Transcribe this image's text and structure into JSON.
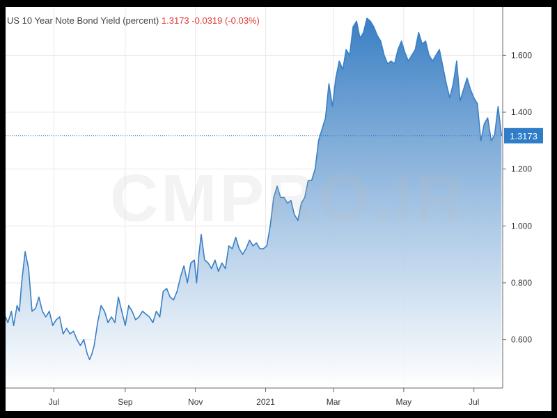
{
  "header": {
    "symbol_title": "US 10 Year Note Bond Yield (percent)",
    "last_value": "1.3173",
    "change": "-0.0319",
    "change_pct": "(-0.03%)"
  },
  "watermark": "CMPRO.IR",
  "colors": {
    "line": "#3a7fc4",
    "fill_top": "#3a7fc4",
    "fill_bottom": "#ffffff",
    "grid": "#e8e8e8",
    "badge": "#2f7dc9",
    "down": "#e53935"
  },
  "chart_data": {
    "type": "area",
    "title": "US 10 Year Note Bond Yield (percent)",
    "xlabel": "",
    "ylabel": "",
    "ylim": [
      0.43,
      1.77
    ],
    "y_ticks": [
      "0.600",
      "0.800",
      "1.000",
      "1.200",
      "1.400",
      "1.600"
    ],
    "x_ticks": [
      {
        "label": "Jul",
        "date": "2020-07-01"
      },
      {
        "label": "Sep",
        "date": "2020-09-01"
      },
      {
        "label": "Nov",
        "date": "2020-11-01"
      },
      {
        "label": "2021",
        "date": "2021-01-01"
      },
      {
        "label": "Mar",
        "date": "2021-03-01"
      },
      {
        "label": "May",
        "date": "2021-05-01"
      },
      {
        "label": "Jul",
        "date": "2021-07-01"
      }
    ],
    "x_range": [
      "2020-05-20",
      "2021-07-26"
    ],
    "current_value": 1.3173,
    "grid": true,
    "series": [
      {
        "values": [
          [
            "2020-05-20",
            0.68
          ],
          [
            "2020-05-22",
            0.66
          ],
          [
            "2020-05-25",
            0.7
          ],
          [
            "2020-05-27",
            0.65
          ],
          [
            "2020-05-30",
            0.72
          ],
          [
            "2020-06-01",
            0.7
          ],
          [
            "2020-06-03",
            0.8
          ],
          [
            "2020-06-06",
            0.91
          ],
          [
            "2020-06-09",
            0.85
          ],
          [
            "2020-06-12",
            0.7
          ],
          [
            "2020-06-15",
            0.71
          ],
          [
            "2020-06-18",
            0.75
          ],
          [
            "2020-06-21",
            0.7
          ],
          [
            "2020-06-24",
            0.68
          ],
          [
            "2020-06-27",
            0.7
          ],
          [
            "2020-06-30",
            0.65
          ],
          [
            "2020-07-03",
            0.67
          ],
          [
            "2020-07-06",
            0.68
          ],
          [
            "2020-07-09",
            0.62
          ],
          [
            "2020-07-12",
            0.64
          ],
          [
            "2020-07-15",
            0.62
          ],
          [
            "2020-07-18",
            0.63
          ],
          [
            "2020-07-21",
            0.6
          ],
          [
            "2020-07-24",
            0.58
          ],
          [
            "2020-07-27",
            0.6
          ],
          [
            "2020-07-30",
            0.55
          ],
          [
            "2020-08-01",
            0.53
          ],
          [
            "2020-08-03",
            0.55
          ],
          [
            "2020-08-05",
            0.58
          ],
          [
            "2020-08-08",
            0.66
          ],
          [
            "2020-08-11",
            0.72
          ],
          [
            "2020-08-14",
            0.7
          ],
          [
            "2020-08-17",
            0.66
          ],
          [
            "2020-08-20",
            0.68
          ],
          [
            "2020-08-23",
            0.66
          ],
          [
            "2020-08-26",
            0.75
          ],
          [
            "2020-08-29",
            0.7
          ],
          [
            "2020-09-01",
            0.65
          ],
          [
            "2020-09-04",
            0.72
          ],
          [
            "2020-09-07",
            0.7
          ],
          [
            "2020-09-10",
            0.67
          ],
          [
            "2020-09-13",
            0.68
          ],
          [
            "2020-09-16",
            0.7
          ],
          [
            "2020-09-19",
            0.69
          ],
          [
            "2020-09-22",
            0.68
          ],
          [
            "2020-09-25",
            0.66
          ],
          [
            "2020-09-28",
            0.7
          ],
          [
            "2020-10-01",
            0.68
          ],
          [
            "2020-10-04",
            0.77
          ],
          [
            "2020-10-07",
            0.78
          ],
          [
            "2020-10-10",
            0.75
          ],
          [
            "2020-10-13",
            0.74
          ],
          [
            "2020-10-16",
            0.77
          ],
          [
            "2020-10-19",
            0.82
          ],
          [
            "2020-10-22",
            0.86
          ],
          [
            "2020-10-25",
            0.8
          ],
          [
            "2020-10-28",
            0.87
          ],
          [
            "2020-10-31",
            0.88
          ],
          [
            "2020-11-02",
            0.8
          ],
          [
            "2020-11-04",
            0.9
          ],
          [
            "2020-11-06",
            0.97
          ],
          [
            "2020-11-09",
            0.88
          ],
          [
            "2020-11-12",
            0.87
          ],
          [
            "2020-11-15",
            0.85
          ],
          [
            "2020-11-18",
            0.88
          ],
          [
            "2020-11-21",
            0.84
          ],
          [
            "2020-11-24",
            0.87
          ],
          [
            "2020-11-27",
            0.85
          ],
          [
            "2020-11-30",
            0.93
          ],
          [
            "2020-12-03",
            0.92
          ],
          [
            "2020-12-06",
            0.96
          ],
          [
            "2020-12-09",
            0.92
          ],
          [
            "2020-12-12",
            0.9
          ],
          [
            "2020-12-15",
            0.92
          ],
          [
            "2020-12-18",
            0.95
          ],
          [
            "2020-12-21",
            0.93
          ],
          [
            "2020-12-24",
            0.94
          ],
          [
            "2020-12-27",
            0.92
          ],
          [
            "2020-12-30",
            0.92
          ],
          [
            "2021-01-02",
            0.93
          ],
          [
            "2021-01-05",
            1.0
          ],
          [
            "2021-01-08",
            1.1
          ],
          [
            "2021-01-11",
            1.14
          ],
          [
            "2021-01-14",
            1.1
          ],
          [
            "2021-01-17",
            1.1
          ],
          [
            "2021-01-20",
            1.08
          ],
          [
            "2021-01-23",
            1.09
          ],
          [
            "2021-01-26",
            1.04
          ],
          [
            "2021-01-29",
            1.02
          ],
          [
            "2021-02-01",
            1.08
          ],
          [
            "2021-02-04",
            1.1
          ],
          [
            "2021-02-07",
            1.16
          ],
          [
            "2021-02-10",
            1.16
          ],
          [
            "2021-02-13",
            1.2
          ],
          [
            "2021-02-16",
            1.3
          ],
          [
            "2021-02-19",
            1.34
          ],
          [
            "2021-02-22",
            1.38
          ],
          [
            "2021-02-25",
            1.5
          ],
          [
            "2021-02-28",
            1.42
          ],
          [
            "2021-03-03",
            1.52
          ],
          [
            "2021-03-06",
            1.58
          ],
          [
            "2021-03-09",
            1.55
          ],
          [
            "2021-03-12",
            1.62
          ],
          [
            "2021-03-15",
            1.6
          ],
          [
            "2021-03-18",
            1.7
          ],
          [
            "2021-03-21",
            1.72
          ],
          [
            "2021-03-24",
            1.66
          ],
          [
            "2021-03-27",
            1.68
          ],
          [
            "2021-03-30",
            1.73
          ],
          [
            "2021-04-02",
            1.72
          ],
          [
            "2021-04-05",
            1.7
          ],
          [
            "2021-04-08",
            1.67
          ],
          [
            "2021-04-11",
            1.65
          ],
          [
            "2021-04-14",
            1.6
          ],
          [
            "2021-04-17",
            1.57
          ],
          [
            "2021-04-20",
            1.58
          ],
          [
            "2021-04-23",
            1.57
          ],
          [
            "2021-04-26",
            1.62
          ],
          [
            "2021-04-29",
            1.65
          ],
          [
            "2021-05-02",
            1.61
          ],
          [
            "2021-05-05",
            1.58
          ],
          [
            "2021-05-08",
            1.6
          ],
          [
            "2021-05-11",
            1.62
          ],
          [
            "2021-05-14",
            1.68
          ],
          [
            "2021-05-17",
            1.64
          ],
          [
            "2021-05-20",
            1.65
          ],
          [
            "2021-05-23",
            1.6
          ],
          [
            "2021-05-26",
            1.58
          ],
          [
            "2021-05-29",
            1.6
          ],
          [
            "2021-06-01",
            1.62
          ],
          [
            "2021-06-04",
            1.56
          ],
          [
            "2021-06-07",
            1.5
          ],
          [
            "2021-06-10",
            1.45
          ],
          [
            "2021-06-13",
            1.5
          ],
          [
            "2021-06-16",
            1.58
          ],
          [
            "2021-06-19",
            1.44
          ],
          [
            "2021-06-22",
            1.48
          ],
          [
            "2021-06-25",
            1.52
          ],
          [
            "2021-06-28",
            1.48
          ],
          [
            "2021-07-01",
            1.45
          ],
          [
            "2021-07-04",
            1.43
          ],
          [
            "2021-07-07",
            1.3
          ],
          [
            "2021-07-10",
            1.36
          ],
          [
            "2021-07-13",
            1.38
          ],
          [
            "2021-07-16",
            1.3
          ],
          [
            "2021-07-19",
            1.32
          ],
          [
            "2021-07-22",
            1.42
          ],
          [
            "2021-07-25",
            1.3173
          ]
        ]
      }
    ]
  }
}
